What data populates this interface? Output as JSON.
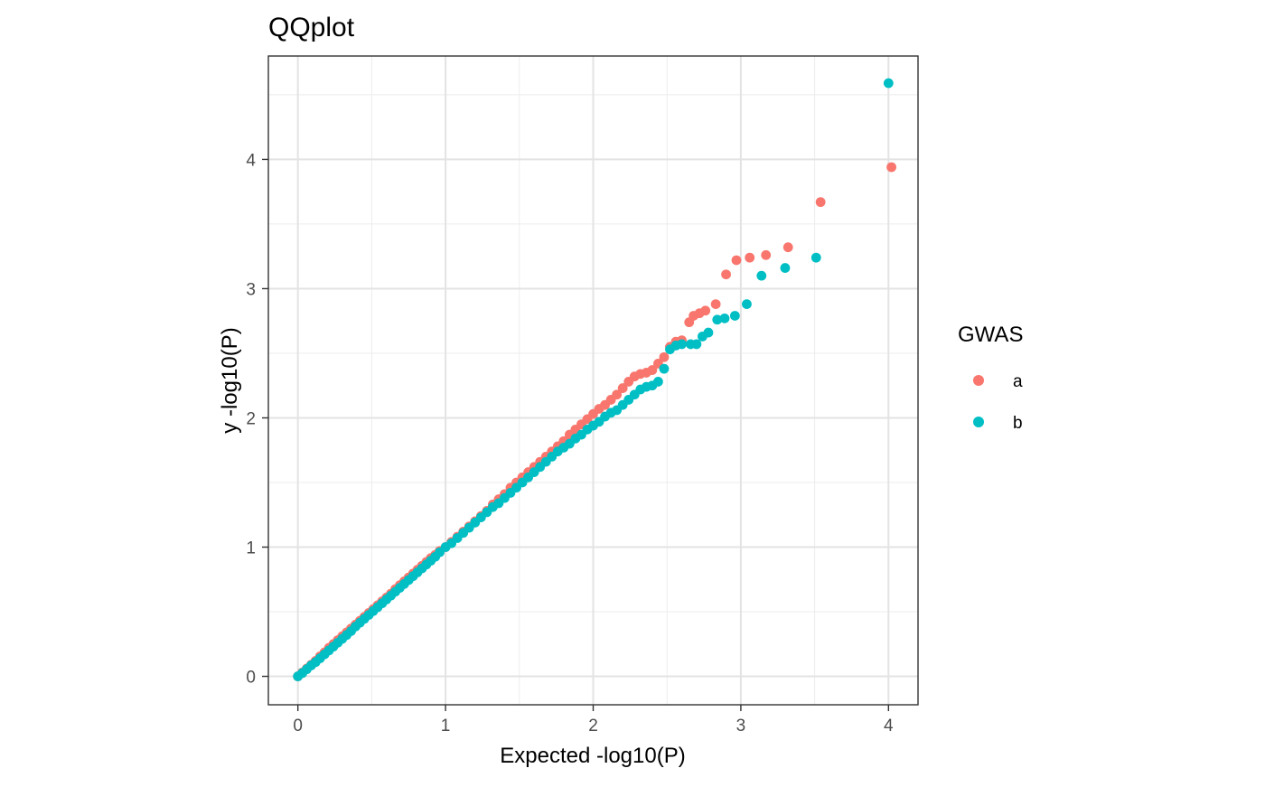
{
  "chart_data": {
    "type": "scatter",
    "title": "QQplot",
    "xlabel": "Expected -log10(P)",
    "ylabel": "y -log10(P)",
    "xlim": [
      -0.2,
      4.2
    ],
    "ylim": [
      -0.22,
      4.8
    ],
    "x_ticks": [
      0,
      1,
      2,
      3,
      4
    ],
    "y_ticks": [
      0,
      1,
      2,
      3,
      4
    ],
    "x_tick_labels": [
      "0",
      "1",
      "2",
      "3",
      "4"
    ],
    "y_tick_labels": [
      "0",
      "1",
      "2",
      "3",
      "4"
    ],
    "x_minor_ticks": [
      0.5,
      1.5,
      2.5,
      3.5
    ],
    "y_minor_ticks": [
      0.5,
      1.5,
      2.5,
      3.5,
      4.5
    ],
    "grid": true,
    "legend": {
      "title": "GWAS",
      "placement": "right",
      "entries": [
        "a",
        "b"
      ]
    },
    "series": [
      {
        "name": "a",
        "color": "#F8766D",
        "points": [
          [
            0.0,
            0.0
          ],
          [
            0.03,
            0.03
          ],
          [
            0.06,
            0.06
          ],
          [
            0.09,
            0.09
          ],
          [
            0.12,
            0.12
          ],
          [
            0.15,
            0.155
          ],
          [
            0.18,
            0.185
          ],
          [
            0.21,
            0.22
          ],
          [
            0.24,
            0.25
          ],
          [
            0.27,
            0.28
          ],
          [
            0.3,
            0.31
          ],
          [
            0.33,
            0.34
          ],
          [
            0.36,
            0.37
          ],
          [
            0.39,
            0.4
          ],
          [
            0.42,
            0.43
          ],
          [
            0.45,
            0.46
          ],
          [
            0.48,
            0.49
          ],
          [
            0.51,
            0.52
          ],
          [
            0.54,
            0.55
          ],
          [
            0.57,
            0.58
          ],
          [
            0.6,
            0.61
          ],
          [
            0.63,
            0.64
          ],
          [
            0.66,
            0.675
          ],
          [
            0.69,
            0.705
          ],
          [
            0.72,
            0.735
          ],
          [
            0.75,
            0.765
          ],
          [
            0.78,
            0.795
          ],
          [
            0.81,
            0.825
          ],
          [
            0.84,
            0.855
          ],
          [
            0.87,
            0.885
          ],
          [
            0.9,
            0.915
          ],
          [
            0.93,
            0.94
          ],
          [
            0.96,
            0.97
          ],
          [
            1.0,
            1.0
          ],
          [
            1.04,
            1.04
          ],
          [
            1.08,
            1.08
          ],
          [
            1.12,
            1.12
          ],
          [
            1.16,
            1.16
          ],
          [
            1.2,
            1.2
          ],
          [
            1.24,
            1.24
          ],
          [
            1.28,
            1.28
          ],
          [
            1.32,
            1.33
          ],
          [
            1.36,
            1.37
          ],
          [
            1.4,
            1.41
          ],
          [
            1.44,
            1.46
          ],
          [
            1.48,
            1.5
          ],
          [
            1.52,
            1.54
          ],
          [
            1.56,
            1.58
          ],
          [
            1.6,
            1.62
          ],
          [
            1.64,
            1.66
          ],
          [
            1.68,
            1.7
          ],
          [
            1.72,
            1.74
          ],
          [
            1.76,
            1.78
          ],
          [
            1.8,
            1.82
          ],
          [
            1.84,
            1.87
          ],
          [
            1.88,
            1.91
          ],
          [
            1.92,
            1.95
          ],
          [
            1.96,
            1.99
          ],
          [
            2.0,
            2.03
          ],
          [
            2.04,
            2.07
          ],
          [
            2.08,
            2.1
          ],
          [
            2.12,
            2.14
          ],
          [
            2.16,
            2.18
          ],
          [
            2.2,
            2.23
          ],
          [
            2.24,
            2.28
          ],
          [
            2.28,
            2.32
          ],
          [
            2.32,
            2.34
          ],
          [
            2.36,
            2.35
          ],
          [
            2.4,
            2.37
          ],
          [
            2.44,
            2.42
          ],
          [
            2.48,
            2.47
          ],
          [
            2.52,
            2.55
          ],
          [
            2.56,
            2.59
          ],
          [
            2.6,
            2.6
          ],
          [
            2.65,
            2.74
          ],
          [
            2.68,
            2.79
          ],
          [
            2.72,
            2.81
          ],
          [
            2.76,
            2.83
          ],
          [
            2.83,
            2.88
          ],
          [
            2.9,
            3.11
          ],
          [
            2.97,
            3.22
          ],
          [
            3.06,
            3.24
          ],
          [
            3.17,
            3.26
          ],
          [
            3.32,
            3.32
          ],
          [
            3.54,
            3.67
          ],
          [
            4.02,
            3.94
          ]
        ]
      },
      {
        "name": "b",
        "color": "#00BFC4",
        "points": [
          [
            0.0,
            0.0
          ],
          [
            0.03,
            0.025
          ],
          [
            0.06,
            0.055
          ],
          [
            0.09,
            0.085
          ],
          [
            0.12,
            0.11
          ],
          [
            0.15,
            0.14
          ],
          [
            0.18,
            0.17
          ],
          [
            0.21,
            0.2
          ],
          [
            0.24,
            0.23
          ],
          [
            0.27,
            0.26
          ],
          [
            0.3,
            0.29
          ],
          [
            0.33,
            0.32
          ],
          [
            0.36,
            0.35
          ],
          [
            0.39,
            0.385
          ],
          [
            0.42,
            0.415
          ],
          [
            0.45,
            0.445
          ],
          [
            0.48,
            0.475
          ],
          [
            0.51,
            0.505
          ],
          [
            0.54,
            0.535
          ],
          [
            0.57,
            0.565
          ],
          [
            0.6,
            0.595
          ],
          [
            0.63,
            0.625
          ],
          [
            0.66,
            0.655
          ],
          [
            0.69,
            0.685
          ],
          [
            0.72,
            0.715
          ],
          [
            0.75,
            0.745
          ],
          [
            0.78,
            0.775
          ],
          [
            0.81,
            0.805
          ],
          [
            0.84,
            0.835
          ],
          [
            0.87,
            0.865
          ],
          [
            0.9,
            0.895
          ],
          [
            0.93,
            0.925
          ],
          [
            0.96,
            0.96
          ],
          [
            1.0,
            1.0
          ],
          [
            1.04,
            1.03
          ],
          [
            1.08,
            1.07
          ],
          [
            1.12,
            1.11
          ],
          [
            1.16,
            1.15
          ],
          [
            1.2,
            1.19
          ],
          [
            1.24,
            1.23
          ],
          [
            1.28,
            1.27
          ],
          [
            1.32,
            1.31
          ],
          [
            1.36,
            1.34
          ],
          [
            1.4,
            1.38
          ],
          [
            1.44,
            1.42
          ],
          [
            1.48,
            1.46
          ],
          [
            1.52,
            1.5
          ],
          [
            1.56,
            1.54
          ],
          [
            1.6,
            1.58
          ],
          [
            1.64,
            1.62
          ],
          [
            1.68,
            1.66
          ],
          [
            1.72,
            1.7
          ],
          [
            1.76,
            1.74
          ],
          [
            1.8,
            1.77
          ],
          [
            1.84,
            1.8
          ],
          [
            1.88,
            1.84
          ],
          [
            1.92,
            1.87
          ],
          [
            1.96,
            1.91
          ],
          [
            2.0,
            1.94
          ],
          [
            2.04,
            1.97
          ],
          [
            2.08,
            2.01
          ],
          [
            2.12,
            2.04
          ],
          [
            2.16,
            2.06
          ],
          [
            2.2,
            2.1
          ],
          [
            2.24,
            2.14
          ],
          [
            2.28,
            2.18
          ],
          [
            2.32,
            2.22
          ],
          [
            2.36,
            2.24
          ],
          [
            2.4,
            2.25
          ],
          [
            2.44,
            2.28
          ],
          [
            2.48,
            2.38
          ],
          [
            2.52,
            2.53
          ],
          [
            2.56,
            2.56
          ],
          [
            2.6,
            2.57
          ],
          [
            2.66,
            2.57
          ],
          [
            2.7,
            2.57
          ],
          [
            2.74,
            2.63
          ],
          [
            2.78,
            2.66
          ],
          [
            2.84,
            2.76
          ],
          [
            2.89,
            2.77
          ],
          [
            2.96,
            2.79
          ],
          [
            3.04,
            2.88
          ],
          [
            3.14,
            3.1
          ],
          [
            3.3,
            3.16
          ],
          [
            3.51,
            3.24
          ],
          [
            4.0,
            4.59
          ]
        ]
      }
    ]
  }
}
